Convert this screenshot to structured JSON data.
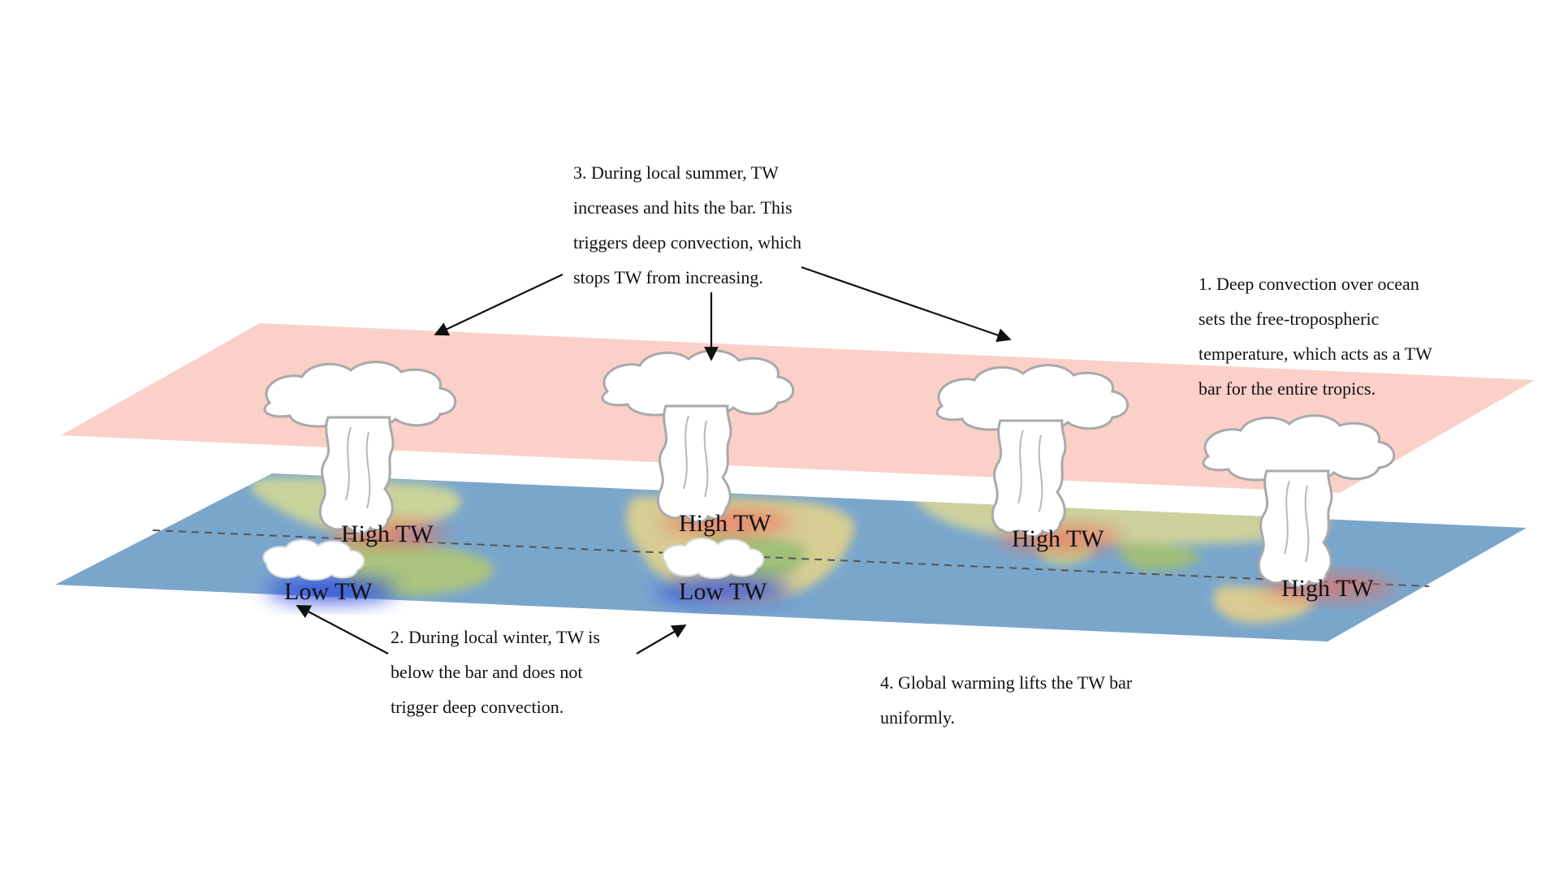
{
  "captions": {
    "deep_convection": [
      "1. Deep convection over ocean",
      "sets the free-tropospheric",
      "temperature, which acts as a TW",
      "bar for the entire tropics."
    ],
    "winter": [
      "2. During local winter, TW is",
      "below the bar and does not",
      "trigger deep convection."
    ],
    "summer": [
      "3. During local summer, TW",
      "increases and hits the bar. This",
      "triggers deep convection, which",
      "stops TW from increasing."
    ],
    "warming": [
      "4. Global warming lifts the TW bar",
      "uniformly."
    ]
  },
  "labels": {
    "high_tw": "High TW",
    "low_tw": "Low TW"
  },
  "colors": {
    "tw_bar_plane": "#f9c9c2",
    "ocean": "#7aa6cc",
    "land": "#d9cf9a",
    "vegetation": "#9fbf7a",
    "high_glow": "#f26a5c",
    "low_glow": "#2a46e0",
    "cloud_fill": "#ffffff",
    "cloud_outline": "#a9a9a9",
    "equator_line": "#555555",
    "arrow": "#111111"
  }
}
